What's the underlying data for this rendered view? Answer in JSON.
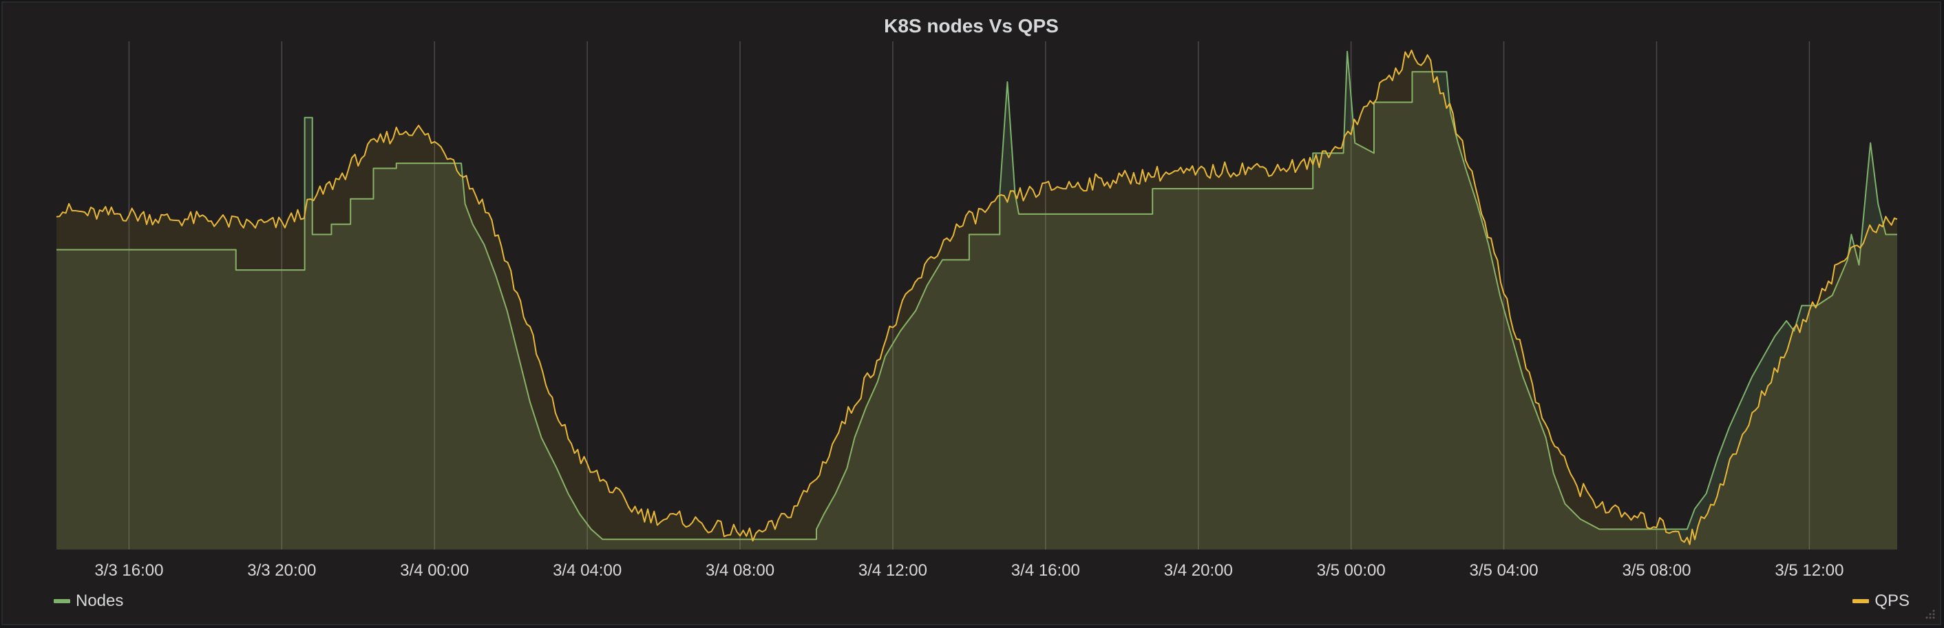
{
  "panel": {
    "title": "K8S nodes Vs QPS"
  },
  "legend": {
    "left": {
      "label": "Nodes",
      "color": "#7eb26d"
    },
    "right": {
      "label": "QPS",
      "color": "#eab839"
    }
  },
  "chart_data": {
    "type": "area",
    "title": "K8S nodes Vs QPS",
    "xlabel": "",
    "ylabel": "",
    "grid": true,
    "legend_placement": "bottom",
    "x_ticks": [
      "3/3 16:00",
      "3/3 20:00",
      "3/4 00:00",
      "3/4 04:00",
      "3/4 08:00",
      "3/4 12:00",
      "3/4 16:00",
      "3/4 20:00",
      "3/5 00:00",
      "3/5 04:00",
      "3/5 08:00",
      "3/5 12:00"
    ],
    "x_start_hours": 14.1,
    "x_end_hours": 62.3,
    "y_range": [
      0,
      100
    ],
    "series": [
      {
        "name": "Nodes",
        "color": "#7eb26d",
        "points": [
          [
            14.1,
            59
          ],
          [
            18.8,
            59
          ],
          [
            18.8,
            55
          ],
          [
            20.6,
            55
          ],
          [
            20.6,
            85
          ],
          [
            20.8,
            85
          ],
          [
            20.8,
            62
          ],
          [
            21.3,
            62
          ],
          [
            21.3,
            64
          ],
          [
            21.8,
            64
          ],
          [
            21.8,
            69
          ],
          [
            22.4,
            69
          ],
          [
            22.4,
            75
          ],
          [
            23.0,
            75
          ],
          [
            23.0,
            76
          ],
          [
            24.7,
            76
          ],
          [
            24.8,
            68
          ],
          [
            25.0,
            64
          ],
          [
            25.3,
            60
          ],
          [
            25.6,
            54
          ],
          [
            25.9,
            47
          ],
          [
            26.2,
            38
          ],
          [
            26.5,
            29
          ],
          [
            26.8,
            22
          ],
          [
            27.2,
            16
          ],
          [
            27.5,
            11
          ],
          [
            27.8,
            7
          ],
          [
            28.1,
            4
          ],
          [
            28.4,
            2
          ],
          [
            29.5,
            2
          ],
          [
            34.0,
            2
          ],
          [
            34.0,
            4
          ],
          [
            34.2,
            7
          ],
          [
            34.5,
            11
          ],
          [
            34.8,
            16
          ],
          [
            35.0,
            22
          ],
          [
            35.3,
            28
          ],
          [
            35.6,
            33
          ],
          [
            35.8,
            38
          ],
          [
            36.2,
            43
          ],
          [
            36.6,
            47
          ],
          [
            36.9,
            52
          ],
          [
            37.3,
            57
          ],
          [
            38.0,
            57
          ],
          [
            38.0,
            62
          ],
          [
            38.8,
            62
          ],
          [
            38.8,
            70
          ],
          [
            39.0,
            92
          ],
          [
            39.2,
            70
          ],
          [
            39.3,
            66
          ],
          [
            42.8,
            66
          ],
          [
            42.8,
            71
          ],
          [
            47.0,
            71
          ],
          [
            47.0,
            78
          ],
          [
            47.8,
            78
          ],
          [
            47.9,
            98
          ],
          [
            48.1,
            80
          ],
          [
            48.6,
            78
          ],
          [
            48.6,
            88
          ],
          [
            49.6,
            88
          ],
          [
            49.6,
            94
          ],
          [
            50.5,
            94
          ],
          [
            50.6,
            86
          ],
          [
            50.8,
            80
          ],
          [
            51.0,
            75
          ],
          [
            51.3,
            68
          ],
          [
            51.6,
            60
          ],
          [
            51.9,
            50
          ],
          [
            52.2,
            42
          ],
          [
            52.5,
            34
          ],
          [
            52.8,
            28
          ],
          [
            53.1,
            22
          ],
          [
            53.3,
            15
          ],
          [
            53.6,
            9
          ],
          [
            54.0,
            6
          ],
          [
            54.5,
            4
          ],
          [
            56.6,
            4
          ],
          [
            56.8,
            4
          ],
          [
            57.0,
            8
          ],
          [
            57.3,
            11
          ],
          [
            57.6,
            18
          ],
          [
            57.9,
            24
          ],
          [
            58.2,
            29
          ],
          [
            58.5,
            34
          ],
          [
            58.8,
            38
          ],
          [
            59.1,
            42
          ],
          [
            59.4,
            45
          ],
          [
            59.6,
            43
          ],
          [
            59.8,
            48
          ],
          [
            60.2,
            48
          ],
          [
            60.6,
            50
          ],
          [
            61.0,
            57
          ],
          [
            61.1,
            62
          ],
          [
            61.3,
            56
          ],
          [
            61.5,
            72
          ],
          [
            61.6,
            80
          ],
          [
            61.8,
            68
          ],
          [
            62.0,
            62
          ],
          [
            62.3,
            62
          ]
        ]
      },
      {
        "name": "QPS",
        "color": "#eab839",
        "points": [
          [
            14.1,
            67
          ],
          [
            15.0,
            66
          ],
          [
            16.0,
            66
          ],
          [
            17.0,
            65
          ],
          [
            18.0,
            65
          ],
          [
            19.0,
            64
          ],
          [
            20.0,
            64
          ],
          [
            20.5,
            66
          ],
          [
            21.0,
            70
          ],
          [
            21.5,
            73
          ],
          [
            22.0,
            77
          ],
          [
            22.5,
            80
          ],
          [
            23.0,
            82
          ],
          [
            23.5,
            83
          ],
          [
            24.0,
            80
          ],
          [
            24.5,
            77
          ],
          [
            25.0,
            71
          ],
          [
            25.5,
            65
          ],
          [
            26.0,
            54
          ],
          [
            26.5,
            43
          ],
          [
            27.0,
            30
          ],
          [
            27.5,
            22
          ],
          [
            28.0,
            16
          ],
          [
            28.5,
            13
          ],
          [
            29.0,
            9
          ],
          [
            29.5,
            7
          ],
          [
            30.0,
            6
          ],
          [
            30.5,
            6
          ],
          [
            31.0,
            5
          ],
          [
            31.5,
            4
          ],
          [
            32.0,
            3
          ],
          [
            32.5,
            3
          ],
          [
            33.0,
            5
          ],
          [
            33.5,
            9
          ],
          [
            34.0,
            14
          ],
          [
            34.5,
            22
          ],
          [
            35.0,
            29
          ],
          [
            35.5,
            36
          ],
          [
            36.0,
            44
          ],
          [
            36.5,
            51
          ],
          [
            37.0,
            57
          ],
          [
            37.5,
            62
          ],
          [
            38.0,
            65
          ],
          [
            38.5,
            67
          ],
          [
            39.0,
            69
          ],
          [
            39.5,
            70
          ],
          [
            40.0,
            71
          ],
          [
            41.0,
            72
          ],
          [
            42.0,
            73
          ],
          [
            43.0,
            74
          ],
          [
            44.0,
            74
          ],
          [
            45.0,
            75
          ],
          [
            46.0,
            75
          ],
          [
            47.0,
            76
          ],
          [
            47.5,
            78
          ],
          [
            48.0,
            83
          ],
          [
            48.5,
            88
          ],
          [
            49.0,
            93
          ],
          [
            49.5,
            97
          ],
          [
            50.0,
            96
          ],
          [
            50.5,
            88
          ],
          [
            51.0,
            78
          ],
          [
            51.5,
            65
          ],
          [
            52.0,
            51
          ],
          [
            52.5,
            38
          ],
          [
            53.0,
            26
          ],
          [
            53.5,
            18
          ],
          [
            54.0,
            12
          ],
          [
            54.5,
            9
          ],
          [
            55.0,
            7
          ],
          [
            55.5,
            6
          ],
          [
            56.0,
            5
          ],
          [
            56.5,
            4
          ],
          [
            56.8,
            2
          ],
          [
            57.0,
            3
          ],
          [
            57.5,
            10
          ],
          [
            58.0,
            18
          ],
          [
            58.5,
            26
          ],
          [
            59.0,
            34
          ],
          [
            59.5,
            41
          ],
          [
            60.0,
            47
          ],
          [
            60.5,
            53
          ],
          [
            61.0,
            58
          ],
          [
            61.5,
            62
          ],
          [
            62.0,
            64
          ],
          [
            62.3,
            65
          ]
        ]
      }
    ]
  }
}
